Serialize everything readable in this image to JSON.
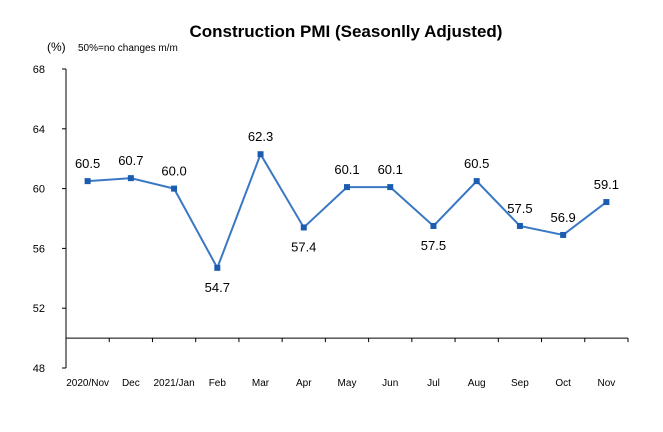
{
  "chart_data": {
    "type": "line",
    "title": "Construction PMI (Seasonlly Adjusted)",
    "unit_label": "(%)",
    "note": "50%=no changes m/m",
    "categories": [
      "2020/Nov",
      "Dec",
      "2021/Jan",
      "Feb",
      "Mar",
      "Apr",
      "May",
      "Jun",
      "Jul",
      "Aug",
      "Sep",
      "Oct",
      "Nov"
    ],
    "y_tick_labels": [
      "48",
      "52",
      "56",
      "60",
      "64",
      "68"
    ],
    "series": [
      {
        "values": [
          60.5,
          60.7,
          60.0,
          54.7,
          62.3,
          57.4,
          60.1,
          60.1,
          57.5,
          60.5,
          57.5,
          56.9,
          59.1
        ],
        "value_labels": [
          "60.5",
          "60.7",
          "60.0",
          "54.7",
          "62.3",
          "57.4",
          "60.1",
          "60.1",
          "57.5",
          "60.5",
          "57.5",
          "56.9",
          "59.1"
        ],
        "color": "#3a78c4",
        "marker_color": "#1a5cb0"
      }
    ],
    "ylim": [
      48,
      68
    ],
    "reference_line": 50,
    "grid": false,
    "legend": "none"
  }
}
